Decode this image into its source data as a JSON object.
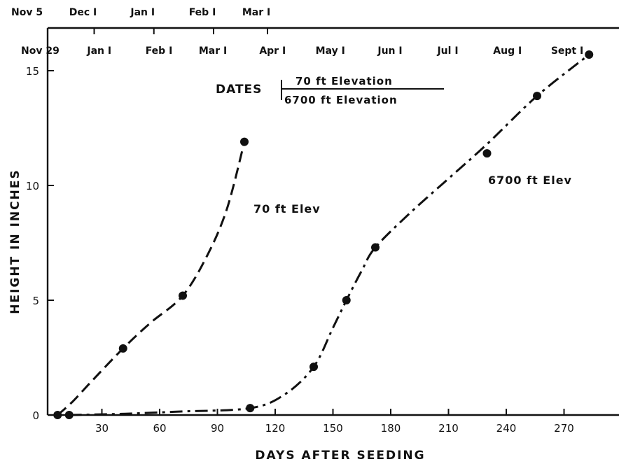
{
  "chart_data": {
    "type": "scatter",
    "xlabel": "DAYS AFTER SEEDING",
    "ylabel": "HEIGHT IN INCHES",
    "xlim": [
      0,
      295
    ],
    "ylim": [
      0,
      16
    ],
    "x_ticks": [
      30,
      60,
      90,
      120,
      150,
      180,
      210,
      240,
      270
    ],
    "y_ticks": [
      0,
      5,
      10,
      15
    ],
    "grid": false,
    "legend": {
      "title": "DATES",
      "upper": "70 ft Elevation",
      "lower": "6700 ft Elevation"
    },
    "date_axis_70ft": {
      "start_label": "Nov 5",
      "ticks": [
        {
          "label": "Dec I",
          "x": 26
        },
        {
          "label": "Jan I",
          "x": 57
        },
        {
          "label": "Feb I",
          "x": 88
        },
        {
          "label": "Mar I",
          "x": 116
        }
      ]
    },
    "date_axis_6700ft": {
      "start_label": "Nov 29",
      "ticks": [
        {
          "label": "Jan I",
          "x": 33
        },
        {
          "label": "Feb I",
          "x": 64
        },
        {
          "label": "Mar I",
          "x": 92
        },
        {
          "label": "Apr I",
          "x": 123
        },
        {
          "label": "May I",
          "x": 153
        },
        {
          "label": "Jun I",
          "x": 184
        },
        {
          "label": "Jul I",
          "x": 214
        },
        {
          "label": "Aug I",
          "x": 245
        },
        {
          "label": "Sept I",
          "x": 276
        }
      ]
    },
    "series": [
      {
        "name": "70 ft Elev",
        "line_style": "dashed",
        "points": [
          {
            "x": 7,
            "y": 0
          },
          {
            "x": 41,
            "y": 2.9
          },
          {
            "x": 72,
            "y": 5.2
          },
          {
            "x": 104,
            "y": 11.9
          }
        ],
        "curve": [
          [
            7,
            0
          ],
          [
            15,
            0.6
          ],
          [
            25,
            1.5
          ],
          [
            41,
            2.9
          ],
          [
            55,
            4.0
          ],
          [
            72,
            5.2
          ],
          [
            85,
            7.0
          ],
          [
            95,
            9.0
          ],
          [
            104,
            11.9
          ]
        ]
      },
      {
        "name": "6700 ft Elev",
        "line_style": "dash-dot",
        "points": [
          {
            "x": 13,
            "y": 0
          },
          {
            "x": 107,
            "y": 0.3
          },
          {
            "x": 140,
            "y": 2.1
          },
          {
            "x": 157,
            "y": 5.0
          },
          {
            "x": 172,
            "y": 7.3
          },
          {
            "x": 230,
            "y": 11.4
          },
          {
            "x": 256,
            "y": 13.9
          },
          {
            "x": 283,
            "y": 15.7
          }
        ],
        "curve": [
          [
            13,
            0
          ],
          [
            40,
            0.05
          ],
          [
            70,
            0.15
          ],
          [
            107,
            0.3
          ],
          [
            125,
            0.9
          ],
          [
            140,
            2.1
          ],
          [
            150,
            3.8
          ],
          [
            157,
            5.0
          ],
          [
            165,
            6.3
          ],
          [
            172,
            7.3
          ],
          [
            190,
            8.8
          ],
          [
            210,
            10.3
          ],
          [
            230,
            11.8
          ],
          [
            256,
            13.9
          ],
          [
            283,
            15.7
          ]
        ]
      }
    ]
  }
}
